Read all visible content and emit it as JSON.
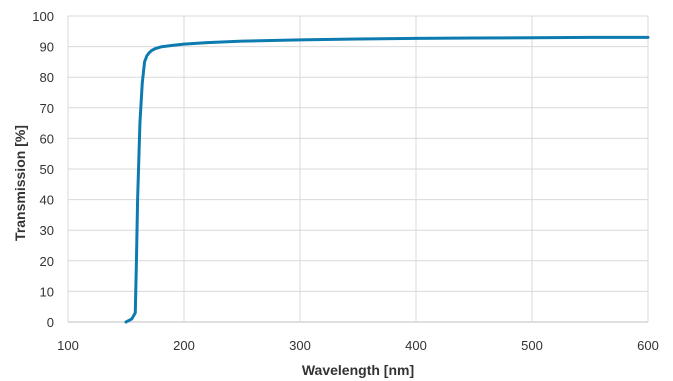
{
  "chart_data": {
    "type": "line",
    "title": "",
    "xlabel": "Wavelength [nm]",
    "ylabel": "Transmission [%]",
    "xlim": [
      100,
      600
    ],
    "ylim": [
      0,
      100
    ],
    "x_ticks": [
      100,
      200,
      300,
      400,
      500,
      600
    ],
    "y_ticks": [
      0,
      10,
      20,
      30,
      40,
      50,
      60,
      70,
      80,
      90,
      100
    ],
    "grid": true,
    "legend": "none",
    "line_color": "#0e7bb0",
    "series": [
      {
        "x": [
          150,
          155,
          158,
          159,
          160,
          162,
          164,
          166,
          168,
          170,
          172,
          175,
          180,
          190,
          200,
          220,
          250,
          300,
          350,
          400,
          450,
          500,
          550,
          600
        ],
        "values": [
          0,
          1,
          3,
          20,
          40,
          65,
          78,
          85,
          87,
          88,
          88.7,
          89.3,
          89.9,
          90.4,
          90.8,
          91.3,
          91.8,
          92.2,
          92.5,
          92.7,
          92.8,
          92.9,
          93.0,
          93.0
        ]
      }
    ]
  }
}
